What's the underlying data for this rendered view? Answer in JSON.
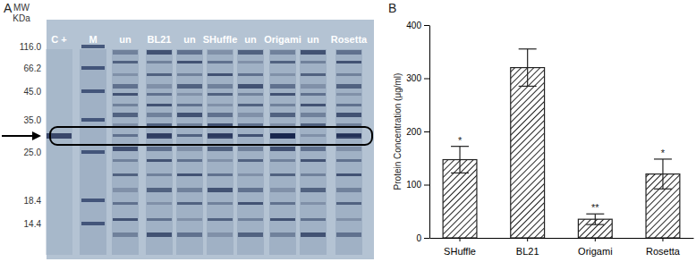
{
  "chart_data": {
    "type": "bar",
    "panel_label": "B",
    "y_label": "Protein Concentration (μg/ml)",
    "categories": [
      "SHuffle",
      "BL21",
      "Origami",
      "Rosetta"
    ],
    "values": [
      147,
      320,
      35,
      120
    ],
    "errors": [
      25,
      35,
      10,
      28
    ],
    "significance": [
      "*",
      null,
      "**",
      "*"
    ],
    "color": "#222222",
    "ylim": [
      0,
      400
    ],
    "yticks": [
      0,
      100,
      200,
      300,
      400
    ],
    "grid": false
  },
  "gel": {
    "panel_label": "A",
    "axis_label": [
      "MW",
      "KDa"
    ],
    "marker_labels": [
      "116.0",
      "66.2",
      "45.0",
      "35.0",
      "25.0",
      "18.4",
      "14.4"
    ],
    "lanes": [
      "C +",
      "M",
      "un",
      "BL21",
      "un",
      "SHuffle",
      "un",
      "Origami",
      "un",
      "Rosetta"
    ]
  }
}
